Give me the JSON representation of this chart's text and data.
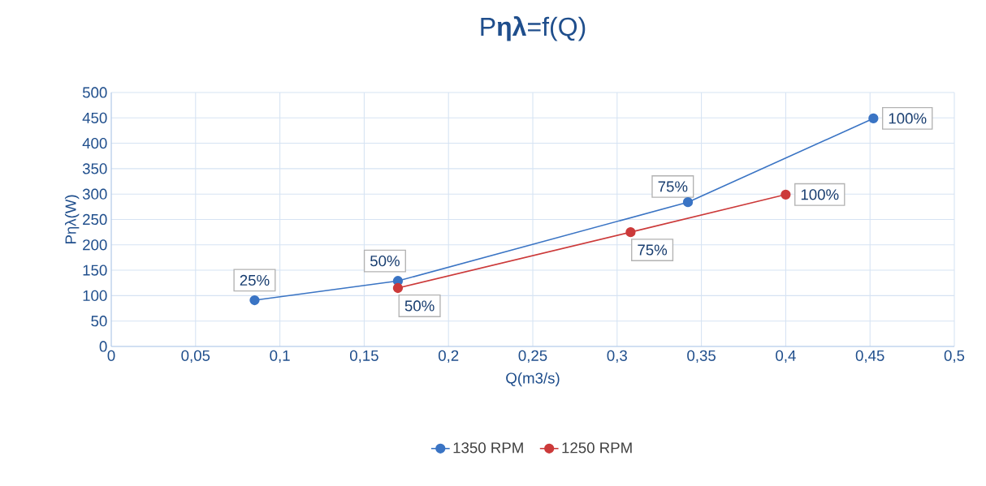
{
  "chart_data": {
    "type": "line",
    "title": "P**ηλ**=f(Q)",
    "xlabel": "Q(m3/s)",
    "ylabel": "Pηλ(W)",
    "series": [
      {
        "name": "1350 RPM",
        "color": "#3a74c4",
        "x": [
          0.085,
          0.17,
          0.342,
          0.452
        ],
        "values": [
          91,
          129,
          284,
          449
        ]
      },
      {
        "name": "1250 RPM",
        "color": "#cc3a3a",
        "x": [
          0.17,
          0.308,
          0.4
        ],
        "values": [
          115,
          225,
          299
        ]
      }
    ],
    "annotations": [
      {
        "text": "25%",
        "x": 0.085,
        "y": 91
      },
      {
        "text": "50%",
        "x": 0.17,
        "y": 129
      },
      {
        "text": "75%",
        "x": 0.342,
        "y": 284
      },
      {
        "text": "100%",
        "x": 0.452,
        "y": 449
      },
      {
        "text": "50%",
        "x": 0.17,
        "y": 115
      },
      {
        "text": "75%",
        "x": 0.308,
        "y": 225
      },
      {
        "text": "100%",
        "x": 0.4,
        "y": 299
      }
    ],
    "xlim": [
      0,
      0.5
    ],
    "ylim": [
      0,
      500
    ],
    "xticks": [
      0,
      {
        "value": 0.05,
        "label": "0,05"
      },
      {
        "value": 0.1,
        "label": "0,1"
      },
      {
        "value": 0.15,
        "label": "0,15"
      },
      {
        "value": 0.2,
        "label": "0,2"
      },
      {
        "value": 0.25,
        "label": "0,25"
      },
      {
        "value": 0.3,
        "label": "0,3"
      },
      {
        "value": 0.35,
        "label": "0,35"
      },
      {
        "value": 0.4,
        "label": "0,4"
      },
      {
        "value": 0.45,
        "label": "0,45"
      },
      {
        "value": 0.5,
        "label": "0,5"
      }
    ],
    "yticks": [
      0,
      50,
      100,
      150,
      200,
      250,
      300,
      350,
      400,
      450,
      500
    ],
    "grid": true,
    "legend": "bottom",
    "marker": "circle",
    "line_style": "solid"
  }
}
